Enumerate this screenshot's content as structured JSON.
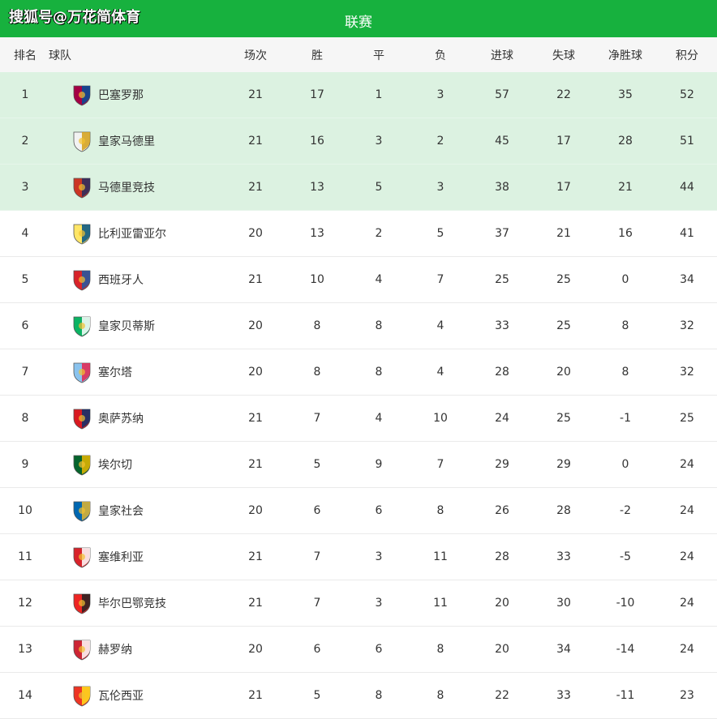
{
  "watermark": "搜狐号@万花简体育",
  "title": "联赛",
  "colors": {
    "header_green": "#17b13e",
    "top_rows_bg": "#dcf2e1",
    "header_row_bg": "#f6f6f6"
  },
  "columns": [
    "排名",
    "球队",
    "场次",
    "胜",
    "平",
    "负",
    "进球",
    "失球",
    "净胜球",
    "积分"
  ],
  "rows": [
    {
      "rank": "1",
      "team": "巴塞罗那",
      "icon": "barcelona-crest-icon",
      "c1": "#a50044",
      "c2": "#004d98",
      "played": "21",
      "w": "17",
      "d": "1",
      "l": "3",
      "gf": "57",
      "ga": "22",
      "gd": "35",
      "pts": "52"
    },
    {
      "rank": "2",
      "team": "皇家马德里",
      "icon": "real-madrid-crest-icon",
      "c1": "#f2f2f2",
      "c2": "#d4a017",
      "played": "21",
      "w": "16",
      "d": "3",
      "l": "2",
      "gf": "45",
      "ga": "17",
      "gd": "28",
      "pts": "51"
    },
    {
      "rank": "3",
      "team": "马德里竞技",
      "icon": "atletico-madrid-crest-icon",
      "c1": "#cb3524",
      "c2": "#272e61",
      "played": "21",
      "w": "13",
      "d": "5",
      "l": "3",
      "gf": "38",
      "ga": "17",
      "gd": "21",
      "pts": "44"
    },
    {
      "rank": "4",
      "team": "比利亚雷亚尔",
      "icon": "villarreal-crest-icon",
      "c1": "#ffe667",
      "c2": "#005187",
      "played": "20",
      "w": "13",
      "d": "2",
      "l": "5",
      "gf": "37",
      "ga": "21",
      "gd": "16",
      "pts": "41"
    },
    {
      "rank": "5",
      "team": "西班牙人",
      "icon": "espanyol-crest-icon",
      "c1": "#d8232a",
      "c2": "#1f5aa6",
      "played": "21",
      "w": "10",
      "d": "4",
      "l": "7",
      "gf": "25",
      "ga": "25",
      "gd": "0",
      "pts": "34"
    },
    {
      "rank": "6",
      "team": "皇家贝蒂斯",
      "icon": "real-betis-crest-icon",
      "c1": "#0bb363",
      "c2": "#ffffff",
      "played": "20",
      "w": "8",
      "d": "8",
      "l": "4",
      "gf": "33",
      "ga": "25",
      "gd": "8",
      "pts": "32"
    },
    {
      "rank": "7",
      "team": "塞尔塔",
      "icon": "celta-crest-icon",
      "c1": "#8ac3ee",
      "c2": "#e5254e",
      "played": "20",
      "w": "8",
      "d": "8",
      "l": "4",
      "gf": "28",
      "ga": "20",
      "gd": "8",
      "pts": "32"
    },
    {
      "rank": "8",
      "team": "奥萨苏纳",
      "icon": "osasuna-crest-icon",
      "c1": "#d91a21",
      "c2": "#0a346f",
      "played": "21",
      "w": "7",
      "d": "4",
      "l": "10",
      "gf": "24",
      "ga": "25",
      "gd": "-1",
      "pts": "25"
    },
    {
      "rank": "9",
      "team": "埃尔切",
      "icon": "elche-crest-icon",
      "c1": "#05642c",
      "c2": "#e8b600",
      "played": "21",
      "w": "5",
      "d": "9",
      "l": "7",
      "gf": "29",
      "ga": "29",
      "gd": "0",
      "pts": "24"
    },
    {
      "rank": "10",
      "team": "皇家社会",
      "icon": "real-sociedad-crest-icon",
      "c1": "#0067b1",
      "c2": "#e4b630",
      "played": "20",
      "w": "6",
      "d": "6",
      "l": "8",
      "gf": "26",
      "ga": "28",
      "gd": "-2",
      "pts": "24"
    },
    {
      "rank": "11",
      "team": "塞维利亚",
      "icon": "sevilla-crest-icon",
      "c1": "#d8232a",
      "c2": "#ffffff",
      "played": "21",
      "w": "7",
      "d": "3",
      "l": "11",
      "gf": "28",
      "ga": "33",
      "gd": "-5",
      "pts": "24"
    },
    {
      "rank": "12",
      "team": "毕尔巴鄂竞技",
      "icon": "athletic-bilbao-crest-icon",
      "c1": "#ee2523",
      "c2": "#222222",
      "played": "21",
      "w": "7",
      "d": "3",
      "l": "11",
      "gf": "20",
      "ga": "30",
      "gd": "-10",
      "pts": "24"
    },
    {
      "rank": "13",
      "team": "赫罗纳",
      "icon": "girona-crest-icon",
      "c1": "#cd2534",
      "c2": "#ffffff",
      "played": "20",
      "w": "6",
      "d": "6",
      "l": "8",
      "gf": "20",
      "ga": "34",
      "gd": "-14",
      "pts": "24"
    },
    {
      "rank": "14",
      "team": "瓦伦西亚",
      "icon": "valencia-crest-icon",
      "c1": "#ee3524",
      "c2": "#ffdf1c",
      "played": "21",
      "w": "5",
      "d": "8",
      "l": "8",
      "gf": "22",
      "ga": "33",
      "gd": "-11",
      "pts": "23"
    }
  ]
}
